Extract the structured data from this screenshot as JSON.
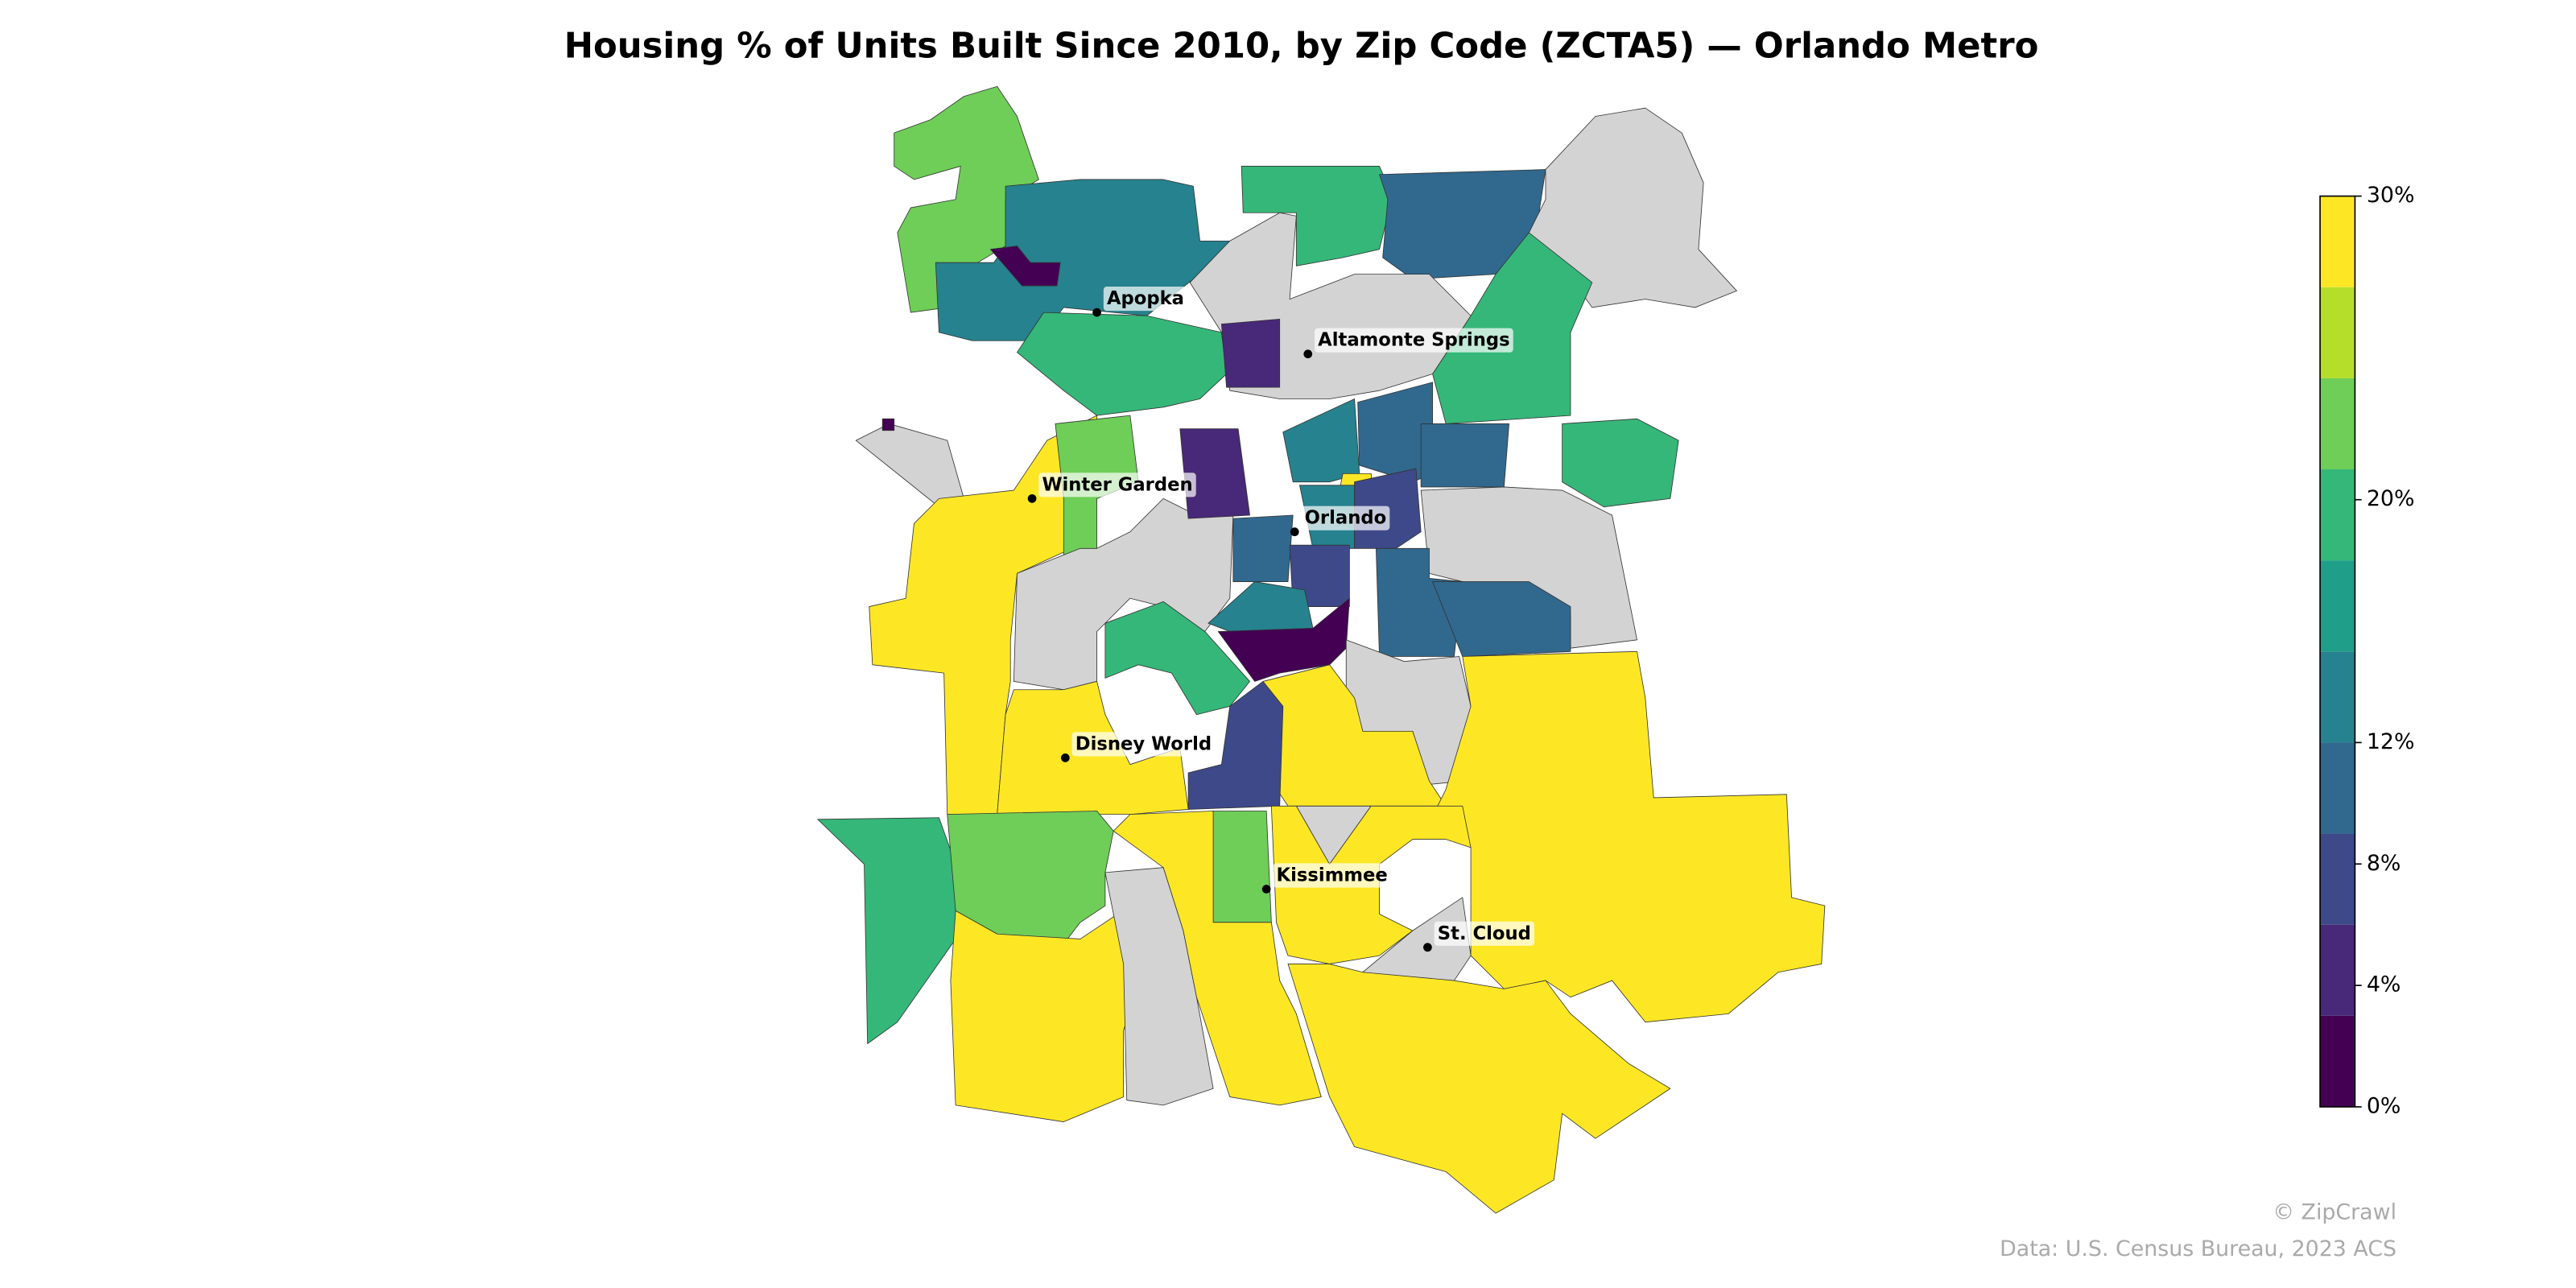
{
  "chart_data": {
    "type": "choropleth",
    "title": "Housing % of Units Built Since 2010, by Zip Code (ZCTA5) — Orlando Metro",
    "places": [
      "Apopka",
      "Altamonte Springs",
      "Winter Garden",
      "Orlando",
      "Disney World",
      "Kissimmee",
      "St. Cloud"
    ],
    "region_values": [
      22,
      14,
      1,
      19,
      19,
      11,
      null,
      19,
      null,
      4,
      19,
      null,
      1,
      30,
      22,
      null,
      4,
      14,
      9,
      10,
      30,
      14,
      6,
      null,
      10,
      6,
      9,
      11,
      14,
      1,
      19,
      null,
      30,
      8,
      30,
      30,
      19,
      22,
      30,
      null,
      22,
      30,
      null,
      30,
      null,
      30
    ],
    "clim": [
      0,
      30
    ],
    "colors": [
      "#440154",
      "#482878",
      "#3e4989",
      "#31688e",
      "#26828e",
      "#1f9e89",
      "#35b779",
      "#6ece58",
      "#b5de2b",
      "#fde725"
    ],
    "no_data_color": "#d3d3d3",
    "colorbar_ticks": [
      {
        "value": 0,
        "label": "0%"
      },
      {
        "value": 4,
        "label": "4%"
      },
      {
        "value": 8,
        "label": "8%"
      },
      {
        "value": 12,
        "label": "12%"
      },
      {
        "value": 20,
        "label": "20%"
      },
      {
        "value": 30,
        "label": "30%"
      }
    ],
    "credit": "© ZipCrawl",
    "source": "Data: U.S. Census Bureau, 2023 ACS"
  }
}
